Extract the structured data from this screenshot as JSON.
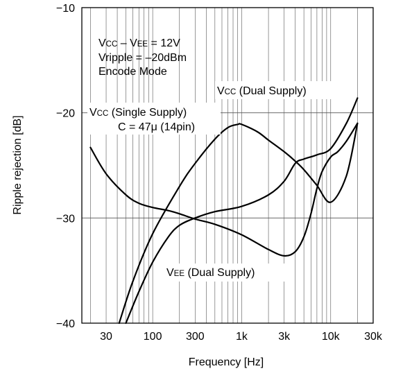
{
  "chart_data": {
    "type": "line",
    "xlabel": "Frequency [Hz]",
    "ylabel": "Ripple rejection [dB]",
    "xscale": "log",
    "xlim": [
      16,
      30000
    ],
    "ylim": [
      -40,
      -10
    ],
    "grid": true,
    "x_ticks": [
      {
        "value": 30,
        "label": "30"
      },
      {
        "value": 100,
        "label": "100"
      },
      {
        "value": 300,
        "label": "300"
      },
      {
        "value": 1000,
        "label": "1k"
      },
      {
        "value": 3000,
        "label": "3k"
      },
      {
        "value": 10000,
        "label": "10k"
      },
      {
        "value": 30000,
        "label": "30k"
      }
    ],
    "y_ticks": [
      {
        "value": -10,
        "label": "−10"
      },
      {
        "value": -20,
        "label": "−20"
      },
      {
        "value": -30,
        "label": "−30"
      },
      {
        "value": -40,
        "label": "−40"
      }
    ],
    "annotations": {
      "conditions_line1": {
        "main": "V",
        "sub1": "CC",
        "mid": " – V",
        "sub2": "EE",
        "tail": " = 12V"
      },
      "conditions_line2": "Vripple = –20dBm",
      "conditions_line3": "Encode Mode",
      "vcc_dual": {
        "main": "V",
        "sub": "CC",
        "tail": " (Dual Supply)"
      },
      "vcc_single": {
        "main": "V",
        "sub": "CC",
        "tail": " (Single Supply)"
      },
      "vcc_single_cap": "C = 47μ (14pin)",
      "vee_dual": {
        "main": "V",
        "sub": "EE",
        "tail": " (Dual Supply)"
      }
    },
    "series": [
      {
        "id": "vcc-single-supply",
        "x": [
          20,
          30,
          50,
          70,
          100,
          150,
          200,
          300,
          500,
          1000,
          2000,
          3000,
          4000,
          5000,
          6000,
          7000,
          8000,
          10000,
          12000,
          15000,
          20000
        ],
        "y": [
          -23.3,
          -25.8,
          -27.8,
          -28.6,
          -29.0,
          -29.3,
          -29.6,
          -30.1,
          -30.6,
          -31.6,
          -33.0,
          -33.6,
          -33.2,
          -31.8,
          -29.6,
          -27.2,
          -25.6,
          -24.2,
          -23.7,
          -22.7,
          -21.0
        ]
      },
      {
        "id": "vcc-dual-supply",
        "x": [
          42,
          60,
          100,
          200,
          300,
          500,
          700,
          900,
          1000,
          1500,
          2000,
          3000,
          4000,
          5000,
          7000,
          10000,
          15000,
          20000
        ],
        "y": [
          -40,
          -36.0,
          -31.5,
          -27.0,
          -24.8,
          -22.5,
          -21.4,
          -21.1,
          -21.1,
          -21.8,
          -22.6,
          -23.7,
          -24.6,
          -25.4,
          -26.9,
          -28.5,
          -26.0,
          -21.0
        ]
      },
      {
        "id": "vee-dual-supply",
        "x": [
          50,
          70,
          100,
          150,
          200,
          300,
          500,
          1000,
          2000,
          3000,
          4000,
          5000,
          7000,
          10000,
          15000,
          20000
        ],
        "y": [
          -40,
          -37.0,
          -34.2,
          -31.8,
          -30.7,
          -30.0,
          -29.4,
          -28.9,
          -27.8,
          -26.5,
          -24.8,
          -24.4,
          -24.0,
          -23.4,
          -21.0,
          -18.6
        ]
      }
    ]
  }
}
